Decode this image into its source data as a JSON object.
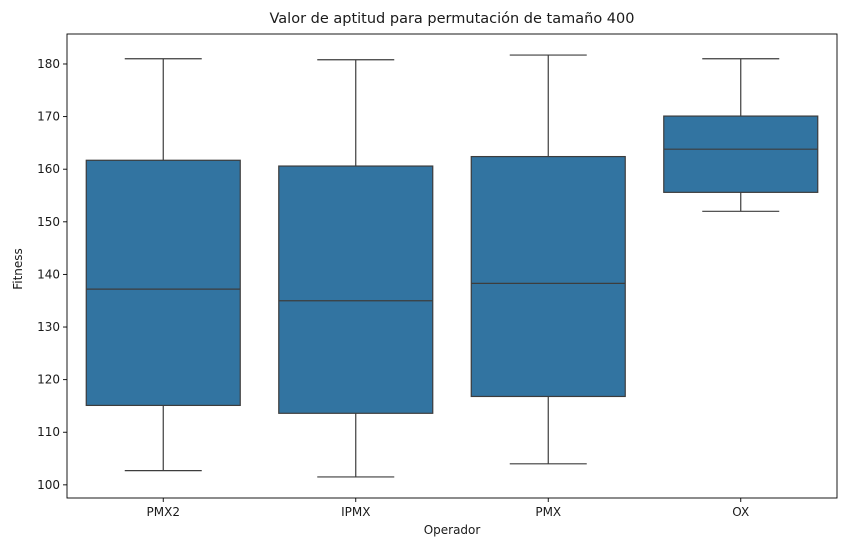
{
  "chart_data": {
    "type": "box",
    "title": "Valor de aptitud para permutación de tamaño 400",
    "xlabel": "Operador",
    "ylabel": "Fitness",
    "ylim": [
      97.5,
      185.7
    ],
    "yticks": [
      100,
      110,
      120,
      130,
      140,
      150,
      160,
      170,
      180
    ],
    "categories": [
      "PMX2",
      "IPMX",
      "PMX",
      "OX"
    ],
    "boxes": [
      {
        "category": "PMX2",
        "whisker_low": 102.7,
        "q1": 115.1,
        "median": 137.2,
        "q3": 161.7,
        "whisker_high": 181.0
      },
      {
        "category": "IPMX",
        "whisker_low": 101.5,
        "q1": 113.6,
        "median": 135.0,
        "q3": 160.6,
        "whisker_high": 180.8
      },
      {
        "category": "PMX",
        "whisker_low": 104.0,
        "q1": 116.8,
        "median": 138.3,
        "q3": 162.4,
        "whisker_high": 181.7
      },
      {
        "category": "OX",
        "whisker_low": 152.0,
        "q1": 155.6,
        "median": 163.8,
        "q3": 170.1,
        "whisker_high": 181.0
      }
    ],
    "box_color": "#3274a1",
    "line_color": "#3d3d3d",
    "grid": false,
    "legend": "none"
  }
}
